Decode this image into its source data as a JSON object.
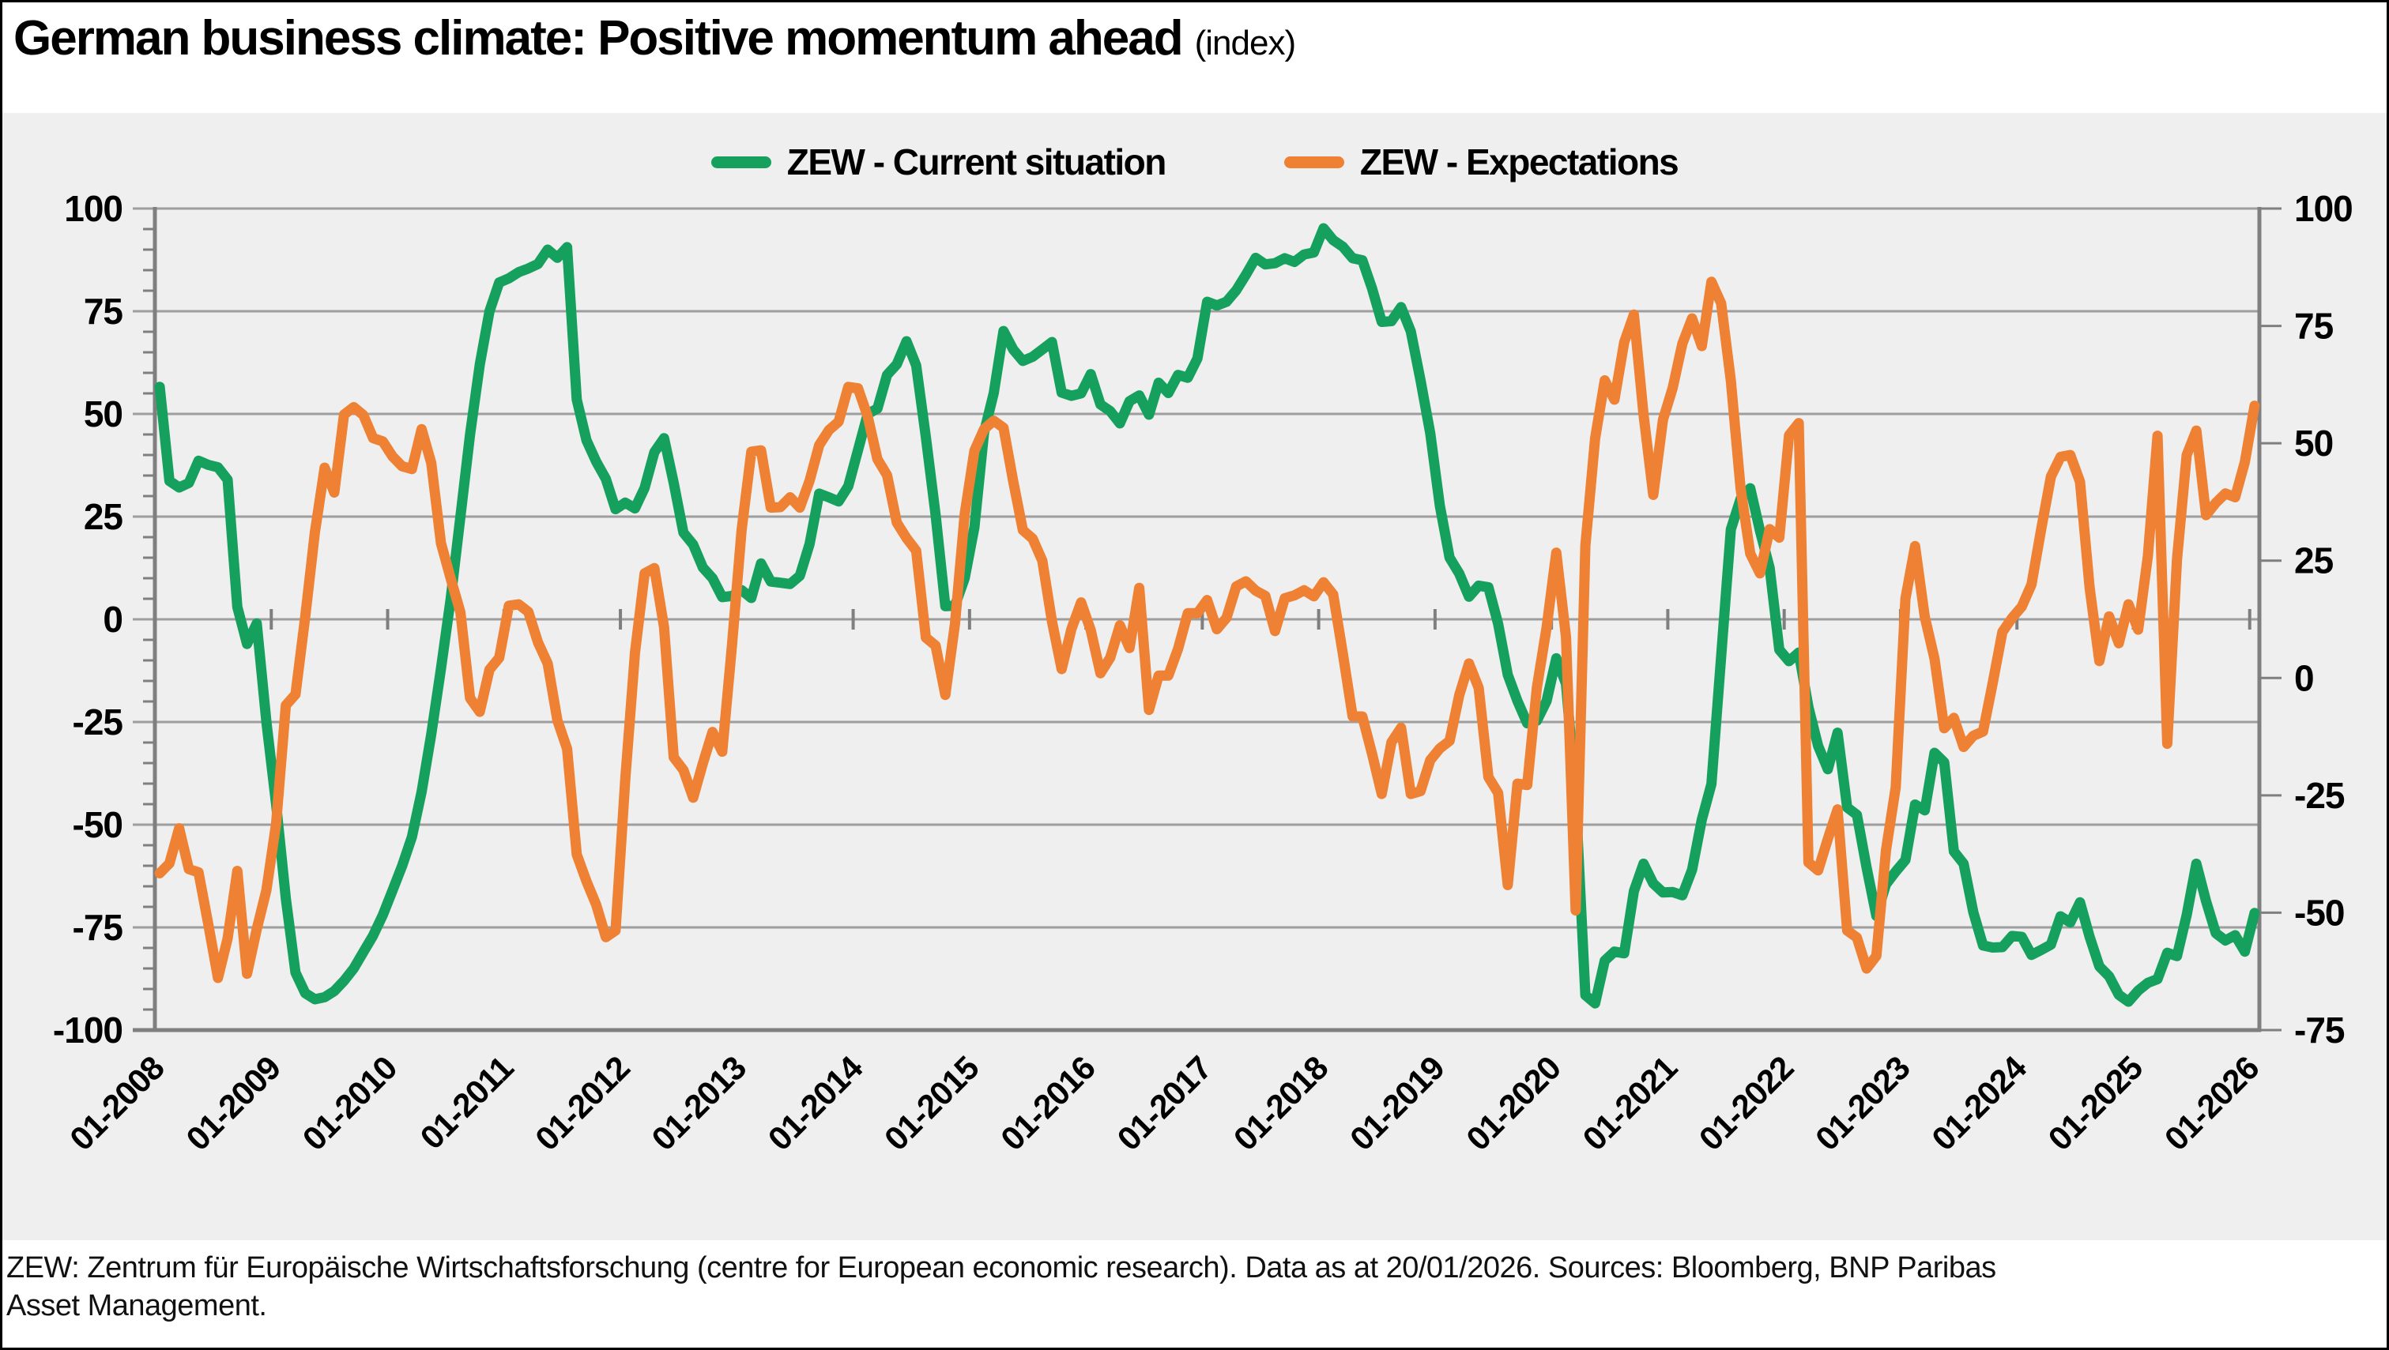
{
  "title": {
    "main": "German business climate: Positive momentum ahead",
    "unit": "(index)"
  },
  "legend": {
    "items": [
      {
        "label": "ZEW - Current situation",
        "color": "#16A05D"
      },
      {
        "label": "ZEW - Expectations",
        "color": "#EE8134"
      }
    ]
  },
  "footer": {
    "lines": [
      "ZEW: Zentrum für Europäische Wirtschaftsforschung (centre for European economic research). Data as at 20/01/2026. Sources: Bloomberg, BNP Paribas",
      "Asset Management."
    ]
  },
  "colors": {
    "panel_background": "#EFEFEF",
    "gridline": "#9E9E9E",
    "axis": "#7F7F7F",
    "text": "#000000",
    "border": "#000000",
    "current_situation": "#16A05D",
    "expectations": "#EE8134"
  },
  "chart_data": {
    "type": "line",
    "title": "German business climate: Positive momentum ahead (index)",
    "frequency": "monthly",
    "start_month": "2008-01",
    "end_month": "2026-01",
    "grid": "horizontal-only",
    "legend_position": "top-center",
    "x_tick_labels": [
      "01-2008",
      "01-2009",
      "01-2010",
      "01-2011",
      "01-2012",
      "01-2013",
      "01-2014",
      "01-2015",
      "01-2016",
      "01-2017",
      "01-2018",
      "01-2019",
      "01-2020",
      "01-2021",
      "01-2022",
      "01-2023",
      "01-2024",
      "01-2025",
      "01-2026"
    ],
    "left_axis": {
      "min": -100,
      "max": 100,
      "major_step": 25,
      "minor_step": 5,
      "label_values": [
        100,
        75,
        50,
        25,
        0,
        -25,
        -50,
        -75,
        -100
      ]
    },
    "right_axis": {
      "min": -75,
      "max": 100,
      "major_step": 25,
      "label_values": [
        100,
        75,
        50,
        25,
        0,
        -25,
        -50,
        -75
      ]
    },
    "series": [
      {
        "name": "ZEW - Current situation",
        "axis": "left",
        "color": "#16A05D",
        "values": [
          56.6,
          33.7,
          32.1,
          33.2,
          38.6,
          37.6,
          37.0,
          34.0,
          3.0,
          -6.0,
          -1.0,
          -25.0,
          -45.0,
          -68.0,
          -86.0,
          -91.0,
          -92.5,
          -92.0,
          -90.5,
          -88.0,
          -85.0,
          -81.0,
          -77.0,
          -72.0,
          -66.0,
          -60.0,
          -53.0,
          -42.0,
          -28.0,
          -12.0,
          5.0,
          25.0,
          45.0,
          62.0,
          75.0,
          82.0,
          83.0,
          84.5,
          85.4,
          86.5,
          90.0,
          88.0,
          90.6,
          53.5,
          43.6,
          38.4,
          34.2,
          26.8,
          28.4,
          27.0,
          32.0,
          40.7,
          44.1,
          33.2,
          21.1,
          18.2,
          12.6,
          10.0,
          5.4,
          5.7,
          7.1,
          5.2,
          13.6,
          9.2,
          8.9,
          8.6,
          10.6,
          18.3,
          30.6,
          29.7,
          28.7,
          32.4,
          41.2,
          50.0,
          51.3,
          59.5,
          62.1,
          67.7,
          61.8,
          44.3,
          25.4,
          3.2,
          3.3,
          10.0,
          22.4,
          45.5,
          55.1,
          70.2,
          65.7,
          62.9,
          63.9,
          65.7,
          67.5,
          55.2,
          54.4,
          55.0,
          59.7,
          52.3,
          50.7,
          47.7,
          53.1,
          54.5,
          49.8,
          57.6,
          55.1,
          59.5,
          58.8,
          63.5,
          77.3,
          76.4,
          77.3,
          80.1,
          83.9,
          88.0,
          86.4,
          86.7,
          87.9,
          87.0,
          88.8,
          89.3,
          95.2,
          92.3,
          90.7,
          87.9,
          87.4,
          80.6,
          72.4,
          72.6,
          76.0,
          70.1,
          58.2,
          45.3,
          27.6,
          15.0,
          11.1,
          5.5,
          8.2,
          7.8,
          -1.1,
          -13.5,
          -19.9,
          -25.3,
          -24.7,
          -19.9,
          -9.5,
          -15.7,
          -43.1,
          -91.5,
          -93.5,
          -83.1,
          -80.9,
          -81.3,
          -66.2,
          -59.5,
          -64.3,
          -66.5,
          -66.4,
          -67.2,
          -61.0,
          -48.8,
          -40.1,
          -9.1,
          21.9,
          29.3,
          31.9,
          21.6,
          12.5,
          -7.4,
          -10.2,
          -8.1,
          -21.4,
          -30.8,
          -36.5,
          -27.6,
          -45.8,
          -47.6,
          -60.5,
          -72.2,
          -64.5,
          -61.4,
          -58.6,
          -45.1,
          -46.5,
          -32.5,
          -34.8,
          -56.5,
          -59.5,
          -71.3,
          -79.4,
          -79.9,
          -79.8,
          -77.1,
          -77.3,
          -81.7,
          -80.5,
          -79.2,
          -72.3,
          -73.8,
          -68.9,
          -77.3,
          -84.5,
          -86.9,
          -91.4,
          -93.1,
          -90.4,
          -88.5,
          -87.6,
          -81.2,
          -82.0,
          -72.0,
          -59.5,
          -68.6,
          -76.4,
          -78.2,
          -76.9,
          -80.9,
          -71.5
        ]
      },
      {
        "name": "ZEW - Expectations",
        "axis": "right",
        "color": "#EE8134",
        "values": [
          -41.6,
          -39.5,
          -32.0,
          -40.7,
          -41.4,
          -52.4,
          -63.9,
          -55.5,
          -41.1,
          -63.0,
          -53.5,
          -45.2,
          -31.0,
          -5.8,
          -3.5,
          13.0,
          31.1,
          44.8,
          39.5,
          56.1,
          57.7,
          56.0,
          51.1,
          50.4,
          47.2,
          45.1,
          44.5,
          53.0,
          45.8,
          28.7,
          21.2,
          14.0,
          -4.3,
          -7.2,
          1.8,
          4.3,
          15.4,
          15.7,
          14.1,
          7.6,
          3.1,
          -9.0,
          -15.1,
          -37.6,
          -43.3,
          -48.3,
          -55.2,
          -53.8,
          -21.6,
          5.4,
          22.3,
          23.4,
          10.8,
          -16.9,
          -19.6,
          -25.5,
          -18.2,
          -11.5,
          -15.7,
          6.9,
          31.5,
          48.2,
          48.5,
          36.3,
          36.4,
          38.5,
          36.3,
          42.0,
          49.6,
          52.8,
          54.6,
          62.0,
          61.7,
          55.7,
          46.6,
          43.2,
          33.1,
          29.8,
          27.1,
          8.6,
          6.9,
          -3.6,
          11.5,
          34.9,
          48.4,
          53.0,
          54.8,
          53.3,
          41.9,
          31.5,
          29.7,
          25.0,
          12.1,
          1.9,
          10.4,
          16.1,
          10.2,
          1.0,
          4.3,
          11.2,
          6.4,
          19.2,
          -6.8,
          0.5,
          0.5,
          6.2,
          13.8,
          13.8,
          16.6,
          10.4,
          12.8,
          19.5,
          20.6,
          18.6,
          17.5,
          10.0,
          17.0,
          17.6,
          18.7,
          17.4,
          20.4,
          17.8,
          5.1,
          -8.2,
          -8.2,
          -16.1,
          -24.7,
          -13.7,
          -10.6,
          -24.7,
          -24.1,
          -17.5,
          -15.0,
          -13.4,
          -3.6,
          3.1,
          -2.1,
          -21.1,
          -24.5,
          -44.1,
          -22.5,
          -22.8,
          -2.1,
          10.7,
          26.7,
          8.7,
          -49.5,
          28.2,
          51.0,
          63.4,
          59.3,
          71.5,
          77.4,
          56.1,
          39.0,
          55.0,
          61.8,
          71.2,
          76.6,
          70.7,
          84.4,
          79.8,
          63.3,
          40.4,
          26.5,
          22.3,
          31.7,
          29.9,
          51.7,
          54.3,
          -39.3,
          -41.0,
          -34.3,
          -28.0,
          -53.8,
          -55.3,
          -61.9,
          -59.2,
          -36.7,
          -23.3,
          16.9,
          28.1,
          13.0,
          4.1,
          -10.7,
          -8.5,
          -14.7,
          -12.3,
          -11.4,
          -1.1,
          9.8,
          12.8,
          15.2,
          19.9,
          31.7,
          42.9,
          47.1,
          47.5,
          41.8,
          19.2,
          3.6,
          13.1,
          7.4,
          15.7,
          10.3,
          26.0,
          51.6,
          -14.0,
          25.2,
          47.5,
          52.7,
          34.7,
          37.3,
          39.3,
          38.5,
          46.0,
          58.0
        ]
      }
    ]
  }
}
